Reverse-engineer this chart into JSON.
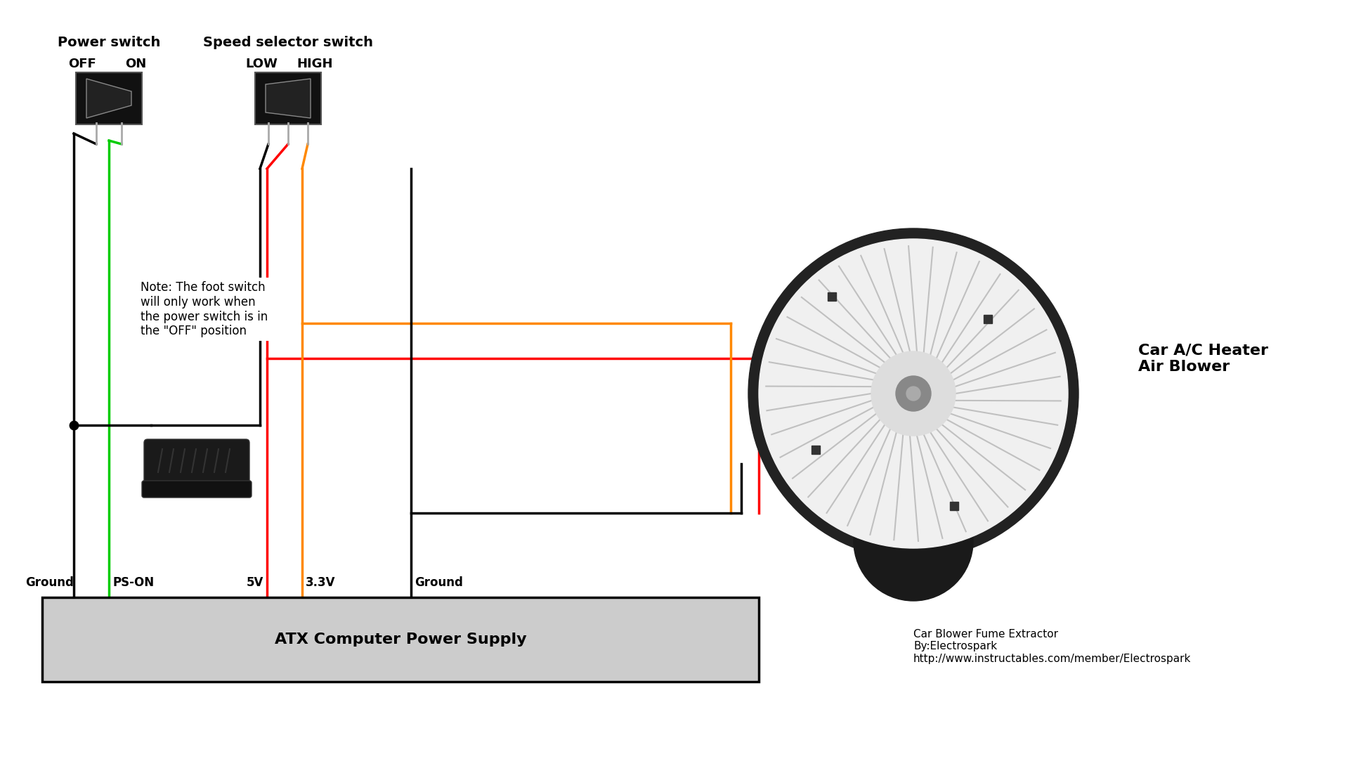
{
  "bg_color": "#ffffff",
  "title_text": "Car Blower Fume Extractor\nBy:Electrospark\nhttp://www.instructables.com/member/Electrospark",
  "power_switch_label": "Power switch",
  "power_off_label": "OFF",
  "power_on_label": "ON",
  "speed_switch_label": "Speed selector switch",
  "speed_low_label": "LOW",
  "speed_high_label": "HIGH",
  "blower_label": "Car A/C Heater\nAir Blower",
  "psu_label": "ATX Computer Power Supply",
  "note_text": "Note: The foot switch\nwill only work when\nthe power switch is in\nthe \"OFF\" position",
  "ground_label": "Ground",
  "pson_label": "PS-ON",
  "fv_label": "5V",
  "v33_label": "3.3V",
  "ground2_label": "Ground",
  "wire_black": "#000000",
  "wire_green": "#00cc00",
  "wire_red": "#ff0000",
  "wire_orange": "#ff8800",
  "switch_color": "#111111",
  "psu_fill": "#cccccc",
  "psu_border": "#000000",
  "font_size_main": 14,
  "font_size_label": 12,
  "font_size_note": 11,
  "font_size_psu": 16,
  "font_bold": "bold"
}
